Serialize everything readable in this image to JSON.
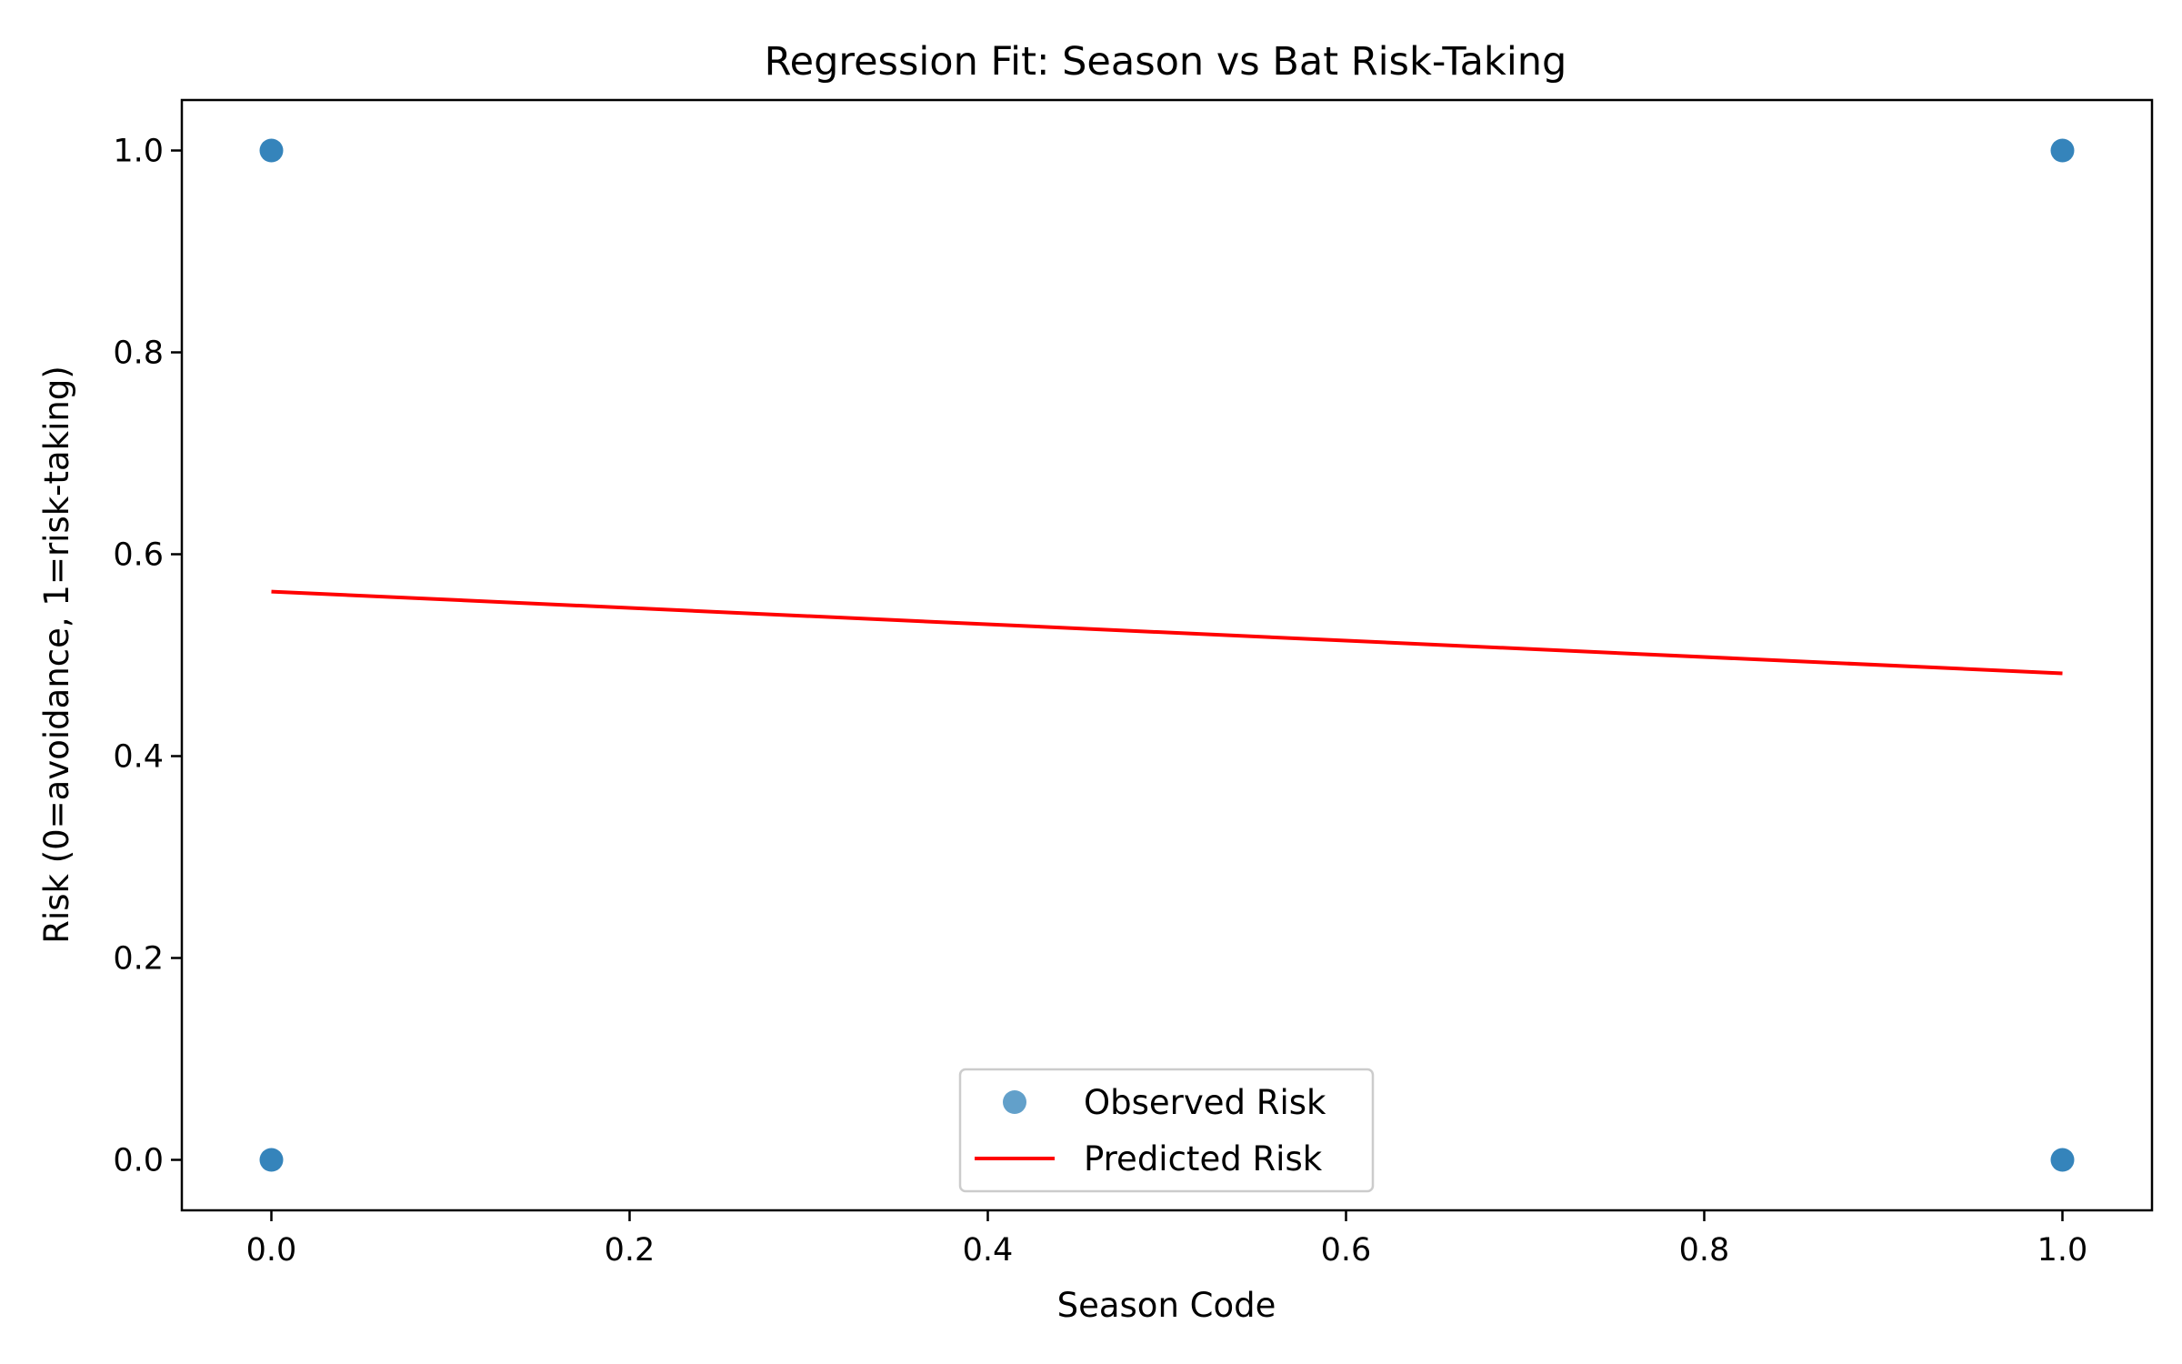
{
  "chart_data": {
    "type": "scatter",
    "title": "Regression Fit: Season vs Bat Risk-Taking",
    "xlabel": "Season Code",
    "ylabel": "Risk (0=avoidance, 1=risk-taking)",
    "xlim": [
      -0.05,
      1.05
    ],
    "ylim": [
      -0.05,
      1.05
    ],
    "x_ticks": [
      "0.0",
      "0.2",
      "0.4",
      "0.6",
      "0.8",
      "1.0"
    ],
    "y_ticks": [
      "0.0",
      "0.2",
      "0.4",
      "0.6",
      "0.8",
      "1.0"
    ],
    "grid": false,
    "legend_position": "lower center",
    "series": [
      {
        "name": "Observed Risk",
        "kind": "scatter",
        "color": "#1f77b4",
        "points": [
          {
            "x": 0,
            "y": 1
          },
          {
            "x": 0,
            "y": 0
          },
          {
            "x": 1,
            "y": 1
          },
          {
            "x": 1,
            "y": 0
          }
        ]
      },
      {
        "name": "Predicted Risk",
        "kind": "line",
        "color": "#ff0000",
        "points": [
          {
            "x": 0,
            "y": 0.563
          },
          {
            "x": 1,
            "y": 0.482
          }
        ]
      }
    ]
  }
}
